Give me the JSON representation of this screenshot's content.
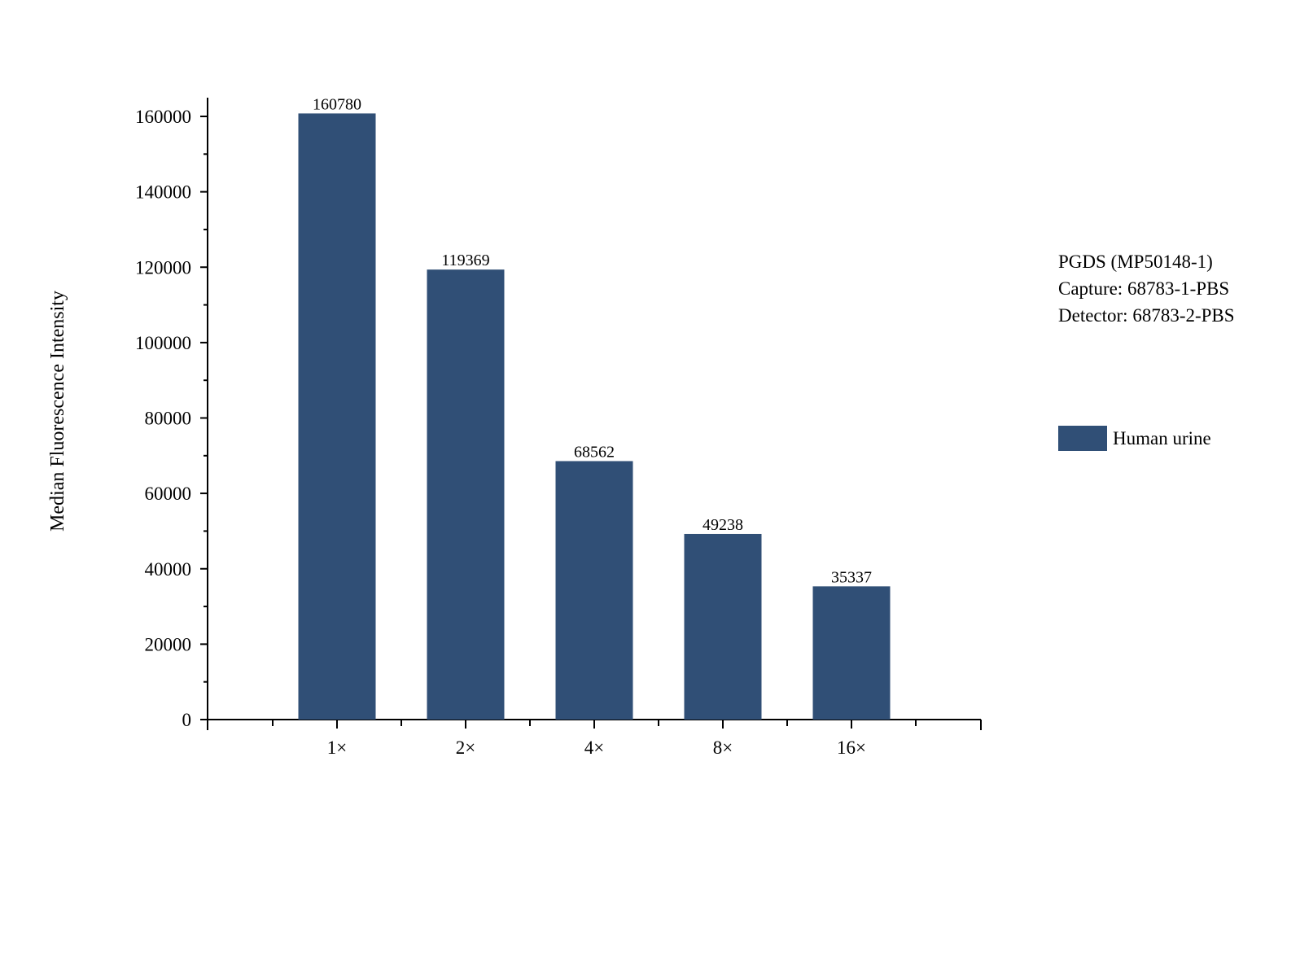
{
  "chart_data": {
    "type": "bar",
    "categories": [
      "1×",
      "2×",
      "4×",
      "8×",
      "16×"
    ],
    "series": [
      {
        "name": "Human urine",
        "values": [
          160780,
          119369,
          68562,
          49238,
          35337
        ],
        "color": "#304f76"
      }
    ],
    "data_labels": [
      "160780",
      "119369",
      "68562",
      "49238",
      "35337"
    ],
    "ylabel": "Median Fluorescence Intensity",
    "xlabel": "",
    "ylim": [
      0,
      165000
    ],
    "yticks": [
      0,
      20000,
      40000,
      60000,
      80000,
      100000,
      120000,
      140000,
      160000
    ],
    "grid": false,
    "legend_position": "right"
  },
  "info": {
    "line1": "PGDS (MP50148-1)",
    "line2": "Capture: 68783-1-PBS",
    "line3": "Detector: 68783-2-PBS"
  },
  "legend": {
    "label": "Human urine",
    "color": "#304f76"
  }
}
